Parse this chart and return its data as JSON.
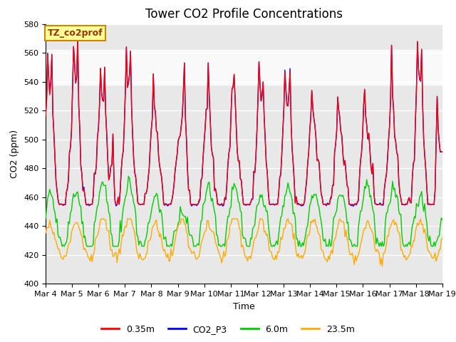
{
  "title": "Tower CO2 Profile Concentrations",
  "xlabel": "Time",
  "ylabel": "CO2 (ppm)",
  "ylim": [
    400,
    580
  ],
  "xlim": [
    0,
    360
  ],
  "x_tick_labels": [
    "Mar 4",
    "Mar 5",
    "Mar 6",
    "Mar 7",
    "Mar 8",
    "Mar 9",
    "Mar 10",
    "Mar 11",
    "Mar 12",
    "Mar 13",
    "Mar 14",
    "Mar 15",
    "Mar 16",
    "Mar 17",
    "Mar 18",
    "Mar 19"
  ],
  "x_tick_positions": [
    0,
    24,
    48,
    72,
    96,
    120,
    144,
    168,
    192,
    216,
    240,
    264,
    288,
    312,
    336,
    360
  ],
  "shaded_band": [
    538,
    562
  ],
  "series_colors": {
    "0.35m": "#ff0000",
    "CO2_P3": "#0000ff",
    "6.0m": "#00cc00",
    "23.5m": "#ffaa00"
  },
  "annotation_label": "TZ_co2prof",
  "annotation_bg": "#ffff99",
  "annotation_border": "#cc8800",
  "background_color": "#ffffff",
  "plot_bg_color": "#e8e8e8",
  "title_fontsize": 12,
  "axis_label_fontsize": 9,
  "tick_fontsize": 8,
  "legend_fontsize": 9,
  "line_width": 1.0
}
